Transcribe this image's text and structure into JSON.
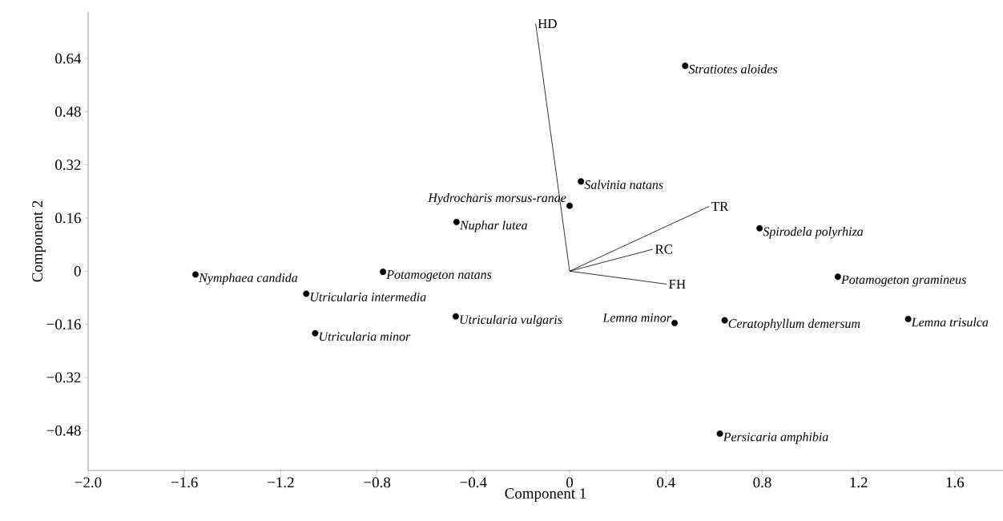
{
  "chart_data": {
    "type": "scatter",
    "xlabel": "Component 1",
    "ylabel": "Component 2",
    "xlim": [
      -2.0,
      1.8
    ],
    "ylim": [
      -0.6,
      0.78
    ],
    "xticks": [
      {
        "value": -2.0,
        "label": "−2.0"
      },
      {
        "value": -1.6,
        "label": "−1.6"
      },
      {
        "value": -1.2,
        "label": "−1.2"
      },
      {
        "value": -0.8,
        "label": "−0.8"
      },
      {
        "value": -0.4,
        "label": "−0.4"
      },
      0,
      0.4,
      0.8,
      1.2,
      1.6
    ],
    "yticks": [
      {
        "value": -0.48,
        "label": "−0.48"
      },
      {
        "value": -0.32,
        "label": "−0.32"
      },
      {
        "value": -0.16,
        "label": "−0.16"
      },
      0,
      0.16,
      0.32,
      0.48,
      0.64
    ],
    "grid": false,
    "marker": "circle",
    "series": [
      {
        "color": "#000000",
        "x": [
          -1.554,
          -1.094,
          -1.057,
          -0.775,
          -0.47,
          -0.473,
          0.0,
          0.047,
          0.48,
          0.789,
          0.436,
          0.644,
          1.114,
          1.406,
          0.624
        ],
        "values": [
          -0.01,
          -0.068,
          -0.187,
          -0.002,
          0.148,
          -0.136,
          0.197,
          0.27,
          0.618,
          0.129,
          -0.156,
          -0.148,
          -0.017,
          -0.144,
          -0.489
        ]
      },
      {
        "type": "line",
        "name": "HD",
        "color": "#000000",
        "marker": "none",
        "x": [
          0,
          -0.141
        ],
        "values": [
          0,
          0.745
        ]
      },
      {
        "type": "line",
        "name": "TR",
        "color": "#000000",
        "marker": "none",
        "x": [
          0,
          0.58
        ],
        "values": [
          0,
          0.195
        ]
      },
      {
        "type": "line",
        "name": "RC",
        "color": "#000000",
        "marker": "none",
        "x": [
          0,
          0.346
        ],
        "values": [
          0,
          0.066
        ]
      },
      {
        "type": "line",
        "name": "FH",
        "color": "#000000",
        "marker": "none",
        "x": [
          0,
          0.403
        ],
        "values": [
          0,
          -0.039
        ]
      }
    ],
    "annotations": [
      {
        "text": "Nymphaea candida",
        "x": -1.554,
        "y": -0.01
      },
      {
        "text": "Utricularia intermedia",
        "x": -1.094,
        "y": -0.068
      },
      {
        "text": "Utricularia minor",
        "x": -1.057,
        "y": -0.187
      },
      {
        "text": "Potamogeton natans",
        "x": -0.775,
        "y": -0.002
      },
      {
        "text": "Nuphar lutea",
        "x": -0.47,
        "y": 0.148
      },
      {
        "text": "Utricularia vulgaris",
        "x": -0.473,
        "y": -0.136
      },
      {
        "text": "Hydrocharis morsus-ranae",
        "x": 0.0,
        "y": 0.197
      },
      {
        "text": "Salvinia natans",
        "x": 0.047,
        "y": 0.27
      },
      {
        "text": "Stratiotes aloides",
        "x": 0.48,
        "y": 0.618
      },
      {
        "text": "Spirodela polyrhiza",
        "x": 0.789,
        "y": 0.129
      },
      {
        "text": "Lemna minor",
        "x": 0.436,
        "y": -0.156
      },
      {
        "text": "Ceratophyllum demersum",
        "x": 0.644,
        "y": -0.148
      },
      {
        "text": "Potamogeton gramineus",
        "x": 1.114,
        "y": -0.017
      },
      {
        "text": "Lemna trisulca",
        "x": 1.406,
        "y": -0.144
      },
      {
        "text": "Persicaria amphibia",
        "x": 0.624,
        "y": -0.489
      }
    ]
  }
}
